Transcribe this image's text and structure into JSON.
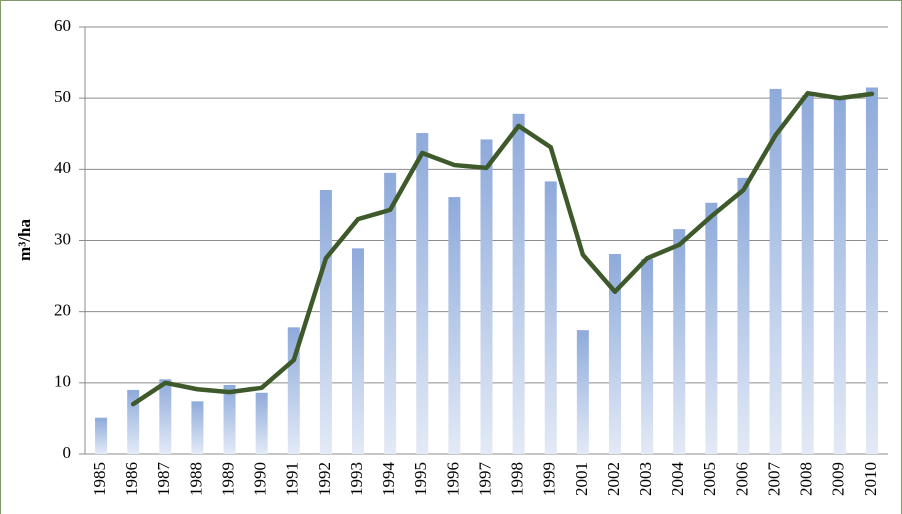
{
  "chart_data": {
    "type": "combo",
    "y_label": "m³/ha",
    "categories": [
      "1985",
      "1986",
      "1987",
      "1988",
      "1989",
      "1990",
      "1991",
      "1992",
      "1993",
      "1994",
      "1995",
      "1996",
      "1997",
      "1998",
      "1999",
      "2001",
      "2002",
      "2003",
      "2004",
      "2005",
      "2006",
      "2007",
      "2008",
      "2009",
      "2010"
    ],
    "series": [
      {
        "type": "bar",
        "color": "#8eaadb",
        "values": [
          5.1,
          9.0,
          10.5,
          7.4,
          9.7,
          8.6,
          17.8,
          37.1,
          28.9,
          39.5,
          45.1,
          36.1,
          44.2,
          47.8,
          38.3,
          17.4,
          28.1,
          27.4,
          31.6,
          35.3,
          38.8,
          51.3,
          50.4,
          49.9,
          51.5
        ]
      },
      {
        "type": "line",
        "color": "#3e5a2b",
        "values": [
          null,
          7.0,
          10.0,
          9.1,
          8.7,
          9.3,
          13.2,
          27.5,
          33.0,
          34.3,
          42.3,
          40.6,
          40.2,
          46.1,
          43.1,
          28.0,
          22.8,
          27.5,
          29.4,
          33.4,
          37.1,
          44.8,
          50.7,
          50.0,
          50.6
        ]
      }
    ],
    "ylim": [
      0,
      60
    ],
    "yticks": [
      0,
      10,
      20,
      30,
      40,
      50,
      60
    ],
    "grid": true
  }
}
